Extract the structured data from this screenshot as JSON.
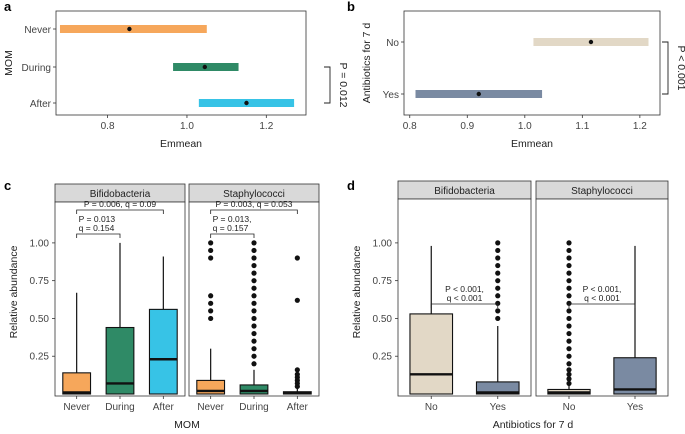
{
  "chart_data": [
    {
      "panel": "a",
      "type": "interval",
      "xlabel": "Emmean",
      "ylabel": "MOM",
      "xlim": [
        0.67,
        1.3
      ],
      "xticks": [
        0.8,
        1.0,
        1.2
      ],
      "xtick_labels": [
        "0.8",
        "1.0",
        "1.2"
      ],
      "categories": [
        "Never",
        "During",
        "After"
      ],
      "lower": [
        0.68,
        0.965,
        1.03
      ],
      "upper": [
        1.05,
        1.13,
        1.27
      ],
      "estimate": [
        0.855,
        1.045,
        1.15
      ],
      "colors": [
        "#f6a75b",
        "#2f8a66",
        "#37c3e6"
      ],
      "bracket": {
        "label": "P = 0.012",
        "from": "During",
        "to": "After"
      }
    },
    {
      "panel": "b",
      "type": "interval",
      "xlabel": "Emmean",
      "ylabel": "Antibiotics for 7 d",
      "xlim": [
        0.79,
        1.235
      ],
      "xticks": [
        0.8,
        0.9,
        1.0,
        1.1,
        1.2
      ],
      "xtick_labels": [
        "0.8",
        "0.9",
        "1.0",
        "1.1",
        "1.2"
      ],
      "categories": [
        "No",
        "Yes"
      ],
      "lower": [
        1.015,
        0.81
      ],
      "upper": [
        1.215,
        1.03
      ],
      "estimate": [
        1.115,
        0.92
      ],
      "colors": [
        "#e2d8c6",
        "#7a8aa2"
      ],
      "bracket": {
        "label": "P < 0.001",
        "from": "No",
        "to": "Yes"
      }
    },
    {
      "panel": "c",
      "type": "boxplot",
      "xlabel": "MOM",
      "ylabel": "Relative abundance",
      "ylim": [
        0.0,
        1.35
      ],
      "yticks": [
        0.25,
        0.5,
        0.75,
        1.0
      ],
      "ytick_labels": [
        "0.25",
        "0.50",
        "0.75",
        "1.00"
      ],
      "categories": [
        "Never",
        "During",
        "After"
      ],
      "colors": [
        "#f6a75b",
        "#2f8a66",
        "#37c3e6"
      ],
      "facets": [
        {
          "label": "Bifidobacteria",
          "boxes": [
            {
              "lo": 0.0,
              "q1": 0.0,
              "med": 0.01,
              "q3": 0.14,
              "hi": 0.67,
              "outliers": []
            },
            {
              "lo": 0.0,
              "q1": 0.0,
              "med": 0.07,
              "q3": 0.44,
              "hi": 1.0,
              "outliers": []
            },
            {
              "lo": 0.0,
              "q1": 0.0,
              "med": 0.23,
              "q3": 0.56,
              "hi": 0.91,
              "outliers": []
            }
          ],
          "annotations": [
            {
              "lines": [
                "P = 0.006, q = 0.09"
              ],
              "from": 0,
              "to": 2
            },
            {
              "lines": [
                "P = 0.013",
                "q = 0.154"
              ],
              "from": 0,
              "to": 1
            }
          ]
        },
        {
          "label": "Staphylococci",
          "boxes": [
            {
              "lo": 0.0,
              "q1": 0.0,
              "med": 0.02,
              "q3": 0.09,
              "hi": 0.3,
              "outliers": [
                0.5,
                0.55,
                0.6,
                0.65,
                0.9,
                0.95,
                1.0
              ]
            },
            {
              "lo": 0.0,
              "q1": 0.0,
              "med": 0.02,
              "q3": 0.06,
              "hi": 0.16,
              "outliers": [
                0.2,
                0.25,
                0.3,
                0.35,
                0.4,
                0.45,
                0.5,
                0.55,
                0.6,
                0.65,
                0.7,
                0.75,
                0.8,
                0.85,
                0.9,
                0.95,
                1.0
              ]
            },
            {
              "lo": 0.0,
              "q1": 0.0,
              "med": 0.005,
              "q3": 0.015,
              "hi": 0.04,
              "outliers": [
                0.05,
                0.07,
                0.09,
                0.11,
                0.13,
                0.16,
                0.62,
                0.9
              ]
            }
          ],
          "annotations": [
            {
              "lines": [
                "P = 0.003, q = 0.053"
              ],
              "from": 0,
              "to": 2
            },
            {
              "lines": [
                "P = 0.013,",
                "q = 0.157"
              ],
              "from": 0,
              "to": 1
            }
          ]
        }
      ]
    },
    {
      "panel": "d",
      "type": "boxplot",
      "xlabel": "Antibiotics for 7 d",
      "ylabel": "Relative abundance",
      "ylim": [
        0.0,
        1.35
      ],
      "yticks": [
        0.25,
        0.5,
        0.75,
        1.0
      ],
      "ytick_labels": [
        "0.25",
        "0.50",
        "0.75",
        "1.00"
      ],
      "categories": [
        "No",
        "Yes"
      ],
      "colors": [
        "#e2d8c6",
        "#7a8aa2"
      ],
      "facets": [
        {
          "label": "Bifidobacteria",
          "boxes": [
            {
              "lo": 0.0,
              "q1": 0.0,
              "med": 0.13,
              "q3": 0.53,
              "hi": 0.98,
              "outliers": []
            },
            {
              "lo": 0.0,
              "q1": 0.0,
              "med": 0.01,
              "q3": 0.08,
              "hi": 0.45,
              "outliers": [
                0.5,
                0.55,
                0.6,
                0.65,
                0.7,
                0.75,
                0.8,
                0.85,
                0.9,
                0.95,
                1.0
              ]
            }
          ],
          "annotations": [
            {
              "lines": [
                "P < 0.001,",
                "q < 0.001"
              ],
              "from": 0,
              "to": 1
            }
          ]
        },
        {
          "label": "Staphylococci",
          "boxes": [
            {
              "lo": 0.0,
              "q1": 0.0,
              "med": 0.01,
              "q3": 0.03,
              "hi": 0.06,
              "outliers": [
                0.07,
                0.1,
                0.13,
                0.16,
                0.2,
                0.25,
                0.3,
                0.35,
                0.4,
                0.45,
                0.5,
                0.55,
                0.6,
                0.65,
                0.7,
                0.75,
                0.8,
                0.85,
                0.9,
                0.95,
                1.0
              ]
            },
            {
              "lo": 0.0,
              "q1": 0.0,
              "med": 0.03,
              "q3": 0.24,
              "hi": 0.98,
              "outliers": []
            }
          ],
          "annotations": [
            {
              "lines": [
                "P < 0.001,",
                "q < 0.001"
              ],
              "from": 0,
              "to": 1
            }
          ]
        }
      ]
    }
  ]
}
